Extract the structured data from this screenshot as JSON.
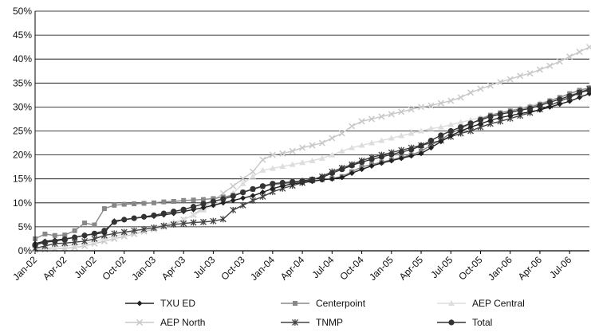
{
  "chart_data": {
    "type": "line",
    "title": "",
    "xlabel": "",
    "ylabel": "",
    "ylim": [
      0,
      50
    ],
    "yticks": [
      0,
      5,
      10,
      15,
      20,
      25,
      30,
      35,
      40,
      45,
      50
    ],
    "ytick_labels": [
      "0%",
      "5%",
      "10%",
      "15%",
      "20%",
      "25%",
      "30%",
      "35%",
      "40%",
      "45%",
      "50%"
    ],
    "grid": "horizontal",
    "legend": "bottom",
    "categories": [
      "Jan-02",
      "Feb-02",
      "Mar-02",
      "Apr-02",
      "May-02",
      "Jun-02",
      "Jul-02",
      "Aug-02",
      "Sep-02",
      "Oct-02",
      "Nov-02",
      "Dec-02",
      "Jan-03",
      "Feb-03",
      "Mar-03",
      "Apr-03",
      "May-03",
      "Jun-03",
      "Jul-03",
      "Aug-03",
      "Sep-03",
      "Oct-03",
      "Nov-03",
      "Dec-03",
      "Jan-04",
      "Feb-04",
      "Mar-04",
      "Apr-04",
      "May-04",
      "Jun-04",
      "Jul-04",
      "Aug-04",
      "Sep-04",
      "Oct-04",
      "Nov-04",
      "Dec-04",
      "Jan-05",
      "Feb-05",
      "Mar-05",
      "Apr-05",
      "May-05",
      "Jun-05",
      "Jul-05",
      "Aug-05",
      "Sep-05",
      "Oct-05",
      "Nov-05",
      "Dec-05",
      "Jan-06",
      "Feb-06",
      "Mar-06",
      "Apr-06",
      "May-06",
      "Jun-06",
      "Jul-06",
      "Aug-06",
      "Sep-06"
    ],
    "xtick_labels": [
      "Jan-02",
      "Apr-02",
      "Jul-02",
      "Oct-02",
      "Jan-03",
      "Apr-03",
      "Jul-03",
      "Oct-03",
      "Jan-04",
      "Apr-04",
      "Jul-04",
      "Oct-04",
      "Jan-05",
      "Apr-05",
      "Jul-05",
      "Oct-05",
      "Jan-06",
      "Apr-06",
      "Jul-06"
    ],
    "series": [
      {
        "name": "TXU ED",
        "color": "#222222",
        "marker": "diamond",
        "values": [
          1.5,
          2,
          2.2,
          2.5,
          2.8,
          3.2,
          3.5,
          3.8,
          6.2,
          6.5,
          6.8,
          7,
          7.2,
          7.5,
          7.8,
          8.2,
          8.6,
          9,
          9.5,
          10,
          10.5,
          11,
          11.5,
          12.2,
          13,
          13.5,
          14,
          14.2,
          14.5,
          14.8,
          15,
          15.3,
          16.2,
          17,
          17.7,
          18.3,
          18.8,
          19.3,
          19.8,
          20.3,
          21.5,
          22.8,
          24,
          25,
          25.8,
          26.5,
          27.2,
          27.8,
          28.2,
          28.6,
          29,
          29.4,
          30,
          30.6,
          31.2,
          32,
          32.8
        ]
      },
      {
        "name": "Centerpoint",
        "color": "#888888",
        "marker": "square",
        "values": [
          2.5,
          3.5,
          3.2,
          3.3,
          4.2,
          5.8,
          5.4,
          8.8,
          9.5,
          9.7,
          9.8,
          9.9,
          10,
          10.2,
          10.3,
          10.5,
          10.6,
          10.7,
          10.9,
          11.2,
          11.6,
          12.2,
          12.8,
          13.4,
          13.8,
          14,
          14.2,
          14.4,
          14.6,
          14.8,
          15.1,
          15.5,
          16.5,
          17.5,
          18,
          18.5,
          19,
          19.5,
          20,
          20.8,
          22,
          23.2,
          24.5,
          25.5,
          26.5,
          27.5,
          28.3,
          28.8,
          29.2,
          29.6,
          30,
          30.6,
          31.3,
          32,
          32.8,
          33.5,
          34
        ]
      },
      {
        "name": "AEP Central",
        "color": "#dddddd",
        "marker": "triangle",
        "values": [
          0.3,
          0.5,
          0.8,
          1,
          1.2,
          1.5,
          2,
          2.5,
          3,
          3.5,
          4,
          4.5,
          5,
          5.5,
          6,
          6.5,
          7.5,
          8.5,
          9.5,
          10.5,
          12,
          14,
          15.5,
          16.8,
          17.2,
          17.6,
          18,
          18.4,
          18.8,
          19.3,
          20,
          20.8,
          21.5,
          22,
          22.5,
          23,
          23.5,
          24,
          24.5,
          25,
          25.5,
          25.8,
          26.3,
          26.8,
          27.3,
          27.8,
          28.3,
          28.8,
          29.3,
          29.8,
          30.3,
          30.8,
          31.4,
          32,
          32.6,
          33.2,
          33.8
        ]
      },
      {
        "name": "AEP North",
        "color": "#c8c8c8",
        "marker": "x",
        "values": [
          0.2,
          0.3,
          0.4,
          0.5,
          0.7,
          1,
          1.5,
          2,
          2.5,
          3,
          3.5,
          4,
          4.5,
          5,
          5.5,
          6.5,
          7.5,
          9,
          10.5,
          12,
          13.5,
          15,
          16.5,
          19,
          20,
          20.3,
          20.8,
          21.5,
          22,
          22.5,
          23.5,
          24.5,
          26,
          27,
          27.5,
          28,
          28.5,
          29,
          29.5,
          30,
          30.3,
          30.8,
          31.3,
          32,
          33,
          33.8,
          34.5,
          35.2,
          35.8,
          36.5,
          37,
          37.8,
          38.6,
          39.5,
          40.5,
          41.5,
          42.5
        ]
      },
      {
        "name": "TNMP",
        "color": "#444444",
        "marker": "asterisk",
        "values": [
          0.5,
          1,
          1.5,
          1.6,
          1.8,
          2,
          2.5,
          3.2,
          3.6,
          3.9,
          4.2,
          4.5,
          4.8,
          5.2,
          5.5,
          5.7,
          5.9,
          6,
          6.2,
          6.6,
          8.5,
          9.5,
          10.5,
          11.3,
          12.3,
          13,
          13.6,
          14.2,
          14.8,
          15.5,
          16.5,
          17.3,
          18,
          18.8,
          19.5,
          20,
          20.5,
          21,
          21.5,
          22,
          22.5,
          23,
          23.8,
          24.5,
          25,
          25.8,
          26.5,
          27,
          27.6,
          28.2,
          28.8,
          29.5,
          30.3,
          31.2,
          32,
          33,
          33.8
        ]
      },
      {
        "name": "Total",
        "color": "#333333",
        "marker": "circle",
        "values": [
          1.2,
          1.8,
          2,
          2.4,
          2.8,
          3.2,
          3.6,
          4.2,
          6,
          6.5,
          6.8,
          7.1,
          7.4,
          7.8,
          8.2,
          8.6,
          9.2,
          9.8,
          10.3,
          10.8,
          11.4,
          12.2,
          12.9,
          13.5,
          14,
          14.2,
          14.4,
          14.6,
          14.9,
          15.3,
          16.2,
          17,
          17.8,
          18.5,
          19.1,
          19.6,
          20.1,
          20.6,
          21.1,
          21.9,
          23,
          24.1,
          25,
          25.8,
          26.6,
          27.3,
          28,
          28.5,
          28.9,
          29.3,
          29.7,
          30.3,
          31,
          31.6,
          32.3,
          33,
          33.5
        ]
      }
    ]
  }
}
